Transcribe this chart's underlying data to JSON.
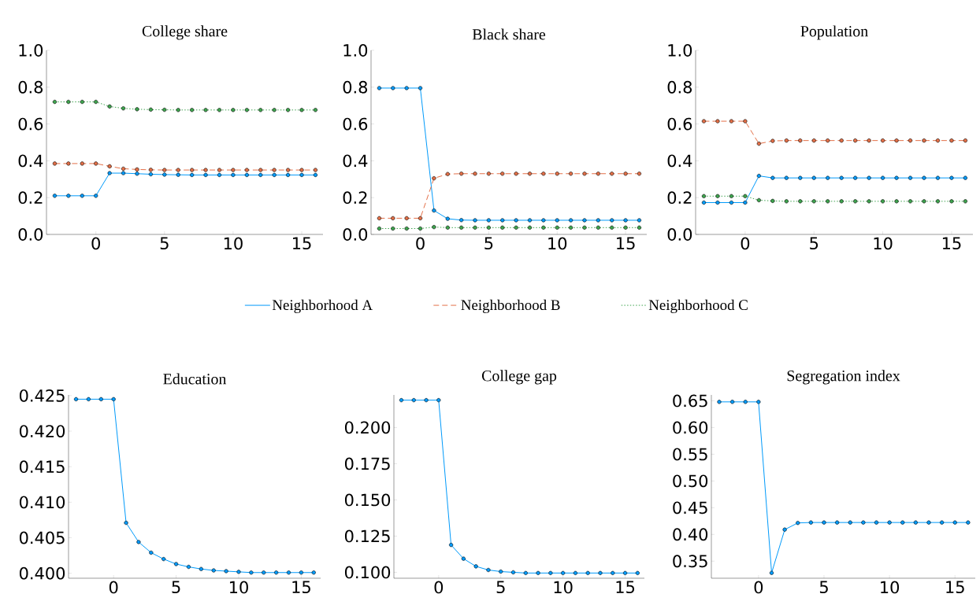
{
  "chart_data": [
    {
      "type": "line",
      "title": "College share",
      "x": [
        -3,
        -2,
        -1,
        0,
        1,
        2,
        3,
        4,
        5,
        6,
        7,
        8,
        9,
        10,
        11,
        12,
        13,
        14,
        15,
        16
      ],
      "xlim": [
        -3.6,
        16.55
      ],
      "xticks": [
        0,
        5,
        10,
        15
      ],
      "ylim": [
        0,
        1
      ],
      "yticks": [
        {
          "value": 0,
          "label": "0.0"
        },
        {
          "value": 0.2,
          "label": "0.2"
        },
        {
          "value": 0.4,
          "label": "0.4"
        },
        {
          "value": 0.6,
          "label": "0.6"
        },
        {
          "value": 0.8,
          "label": "0.8"
        },
        {
          "value": 1,
          "label": "1.0"
        }
      ],
      "marker": "circle",
      "legend": "bottom",
      "series": [
        {
          "name": "Neighborhood A",
          "color": "#009afa",
          "line_style": "solid",
          "values": [
            0.21,
            0.21,
            0.21,
            0.21,
            0.333,
            0.333,
            0.33,
            0.327,
            0.325,
            0.324,
            0.323,
            0.323,
            0.323,
            0.323,
            0.323,
            0.323,
            0.323,
            0.323,
            0.323,
            0.323
          ]
        },
        {
          "name": "Neighborhood B",
          "color": "#e36f47",
          "line_style": "dashed",
          "values": [
            0.385,
            0.385,
            0.385,
            0.385,
            0.37,
            0.357,
            0.353,
            0.351,
            0.35,
            0.35,
            0.35,
            0.35,
            0.35,
            0.35,
            0.35,
            0.35,
            0.35,
            0.35,
            0.35,
            0.35
          ]
        },
        {
          "name": "Neighborhood C",
          "color": "#3ea44e",
          "line_style": "dotted",
          "values": [
            0.72,
            0.72,
            0.72,
            0.72,
            0.695,
            0.685,
            0.68,
            0.678,
            0.677,
            0.676,
            0.676,
            0.676,
            0.676,
            0.676,
            0.676,
            0.676,
            0.676,
            0.676,
            0.676,
            0.676
          ]
        }
      ]
    },
    {
      "type": "line",
      "title": "Black share",
      "x": [
        -3,
        -2,
        -1,
        0,
        1,
        2,
        3,
        4,
        5,
        6,
        7,
        8,
        9,
        10,
        11,
        12,
        13,
        14,
        15,
        16
      ],
      "xlim": [
        -3.6,
        16.55
      ],
      "xticks": [
        0,
        5,
        10,
        15
      ],
      "ylim": [
        0,
        1
      ],
      "yticks": [
        {
          "value": 0,
          "label": "0.0"
        },
        {
          "value": 0.2,
          "label": "0.2"
        },
        {
          "value": 0.4,
          "label": "0.4"
        },
        {
          "value": 0.6,
          "label": "0.6"
        },
        {
          "value": 0.8,
          "label": "0.8"
        },
        {
          "value": 1,
          "label": "1.0"
        }
      ],
      "marker": "circle",
      "series": [
        {
          "color": "#009afa",
          "line_style": "solid",
          "values": [
            0.795,
            0.795,
            0.795,
            0.795,
            0.13,
            0.085,
            0.078,
            0.077,
            0.077,
            0.077,
            0.077,
            0.077,
            0.077,
            0.077,
            0.077,
            0.077,
            0.077,
            0.077,
            0.077,
            0.077
          ]
        },
        {
          "color": "#e36f47",
          "line_style": "dashed",
          "values": [
            0.088,
            0.088,
            0.088,
            0.088,
            0.305,
            0.328,
            0.33,
            0.33,
            0.33,
            0.33,
            0.33,
            0.33,
            0.33,
            0.33,
            0.33,
            0.33,
            0.33,
            0.33,
            0.33,
            0.33
          ]
        },
        {
          "color": "#3ea44e",
          "line_style": "dotted",
          "values": [
            0.032,
            0.032,
            0.032,
            0.032,
            0.04,
            0.037,
            0.037,
            0.037,
            0.037,
            0.037,
            0.037,
            0.037,
            0.037,
            0.037,
            0.037,
            0.037,
            0.037,
            0.037,
            0.037,
            0.037
          ]
        }
      ]
    },
    {
      "type": "line",
      "title": "Population",
      "x": [
        -3,
        -2,
        -1,
        0,
        1,
        2,
        3,
        4,
        5,
        6,
        7,
        8,
        9,
        10,
        11,
        12,
        13,
        14,
        15,
        16
      ],
      "xlim": [
        -3.6,
        16.55
      ],
      "xticks": [
        0,
        5,
        10,
        15
      ],
      "ylim": [
        0,
        1
      ],
      "yticks": [
        {
          "value": 0,
          "label": "0.0"
        },
        {
          "value": 0.2,
          "label": "0.2"
        },
        {
          "value": 0.4,
          "label": "0.4"
        },
        {
          "value": 0.6,
          "label": "0.6"
        },
        {
          "value": 0.8,
          "label": "0.8"
        },
        {
          "value": 1,
          "label": "1.0"
        }
      ],
      "marker": "circle",
      "series": [
        {
          "color": "#009afa",
          "line_style": "solid",
          "values": [
            0.173,
            0.173,
            0.173,
            0.173,
            0.318,
            0.307,
            0.307,
            0.307,
            0.307,
            0.307,
            0.307,
            0.307,
            0.307,
            0.307,
            0.307,
            0.307,
            0.307,
            0.307,
            0.307,
            0.307
          ]
        },
        {
          "color": "#e36f47",
          "line_style": "dashed",
          "values": [
            0.615,
            0.615,
            0.615,
            0.615,
            0.493,
            0.508,
            0.51,
            0.51,
            0.51,
            0.51,
            0.51,
            0.51,
            0.51,
            0.51,
            0.51,
            0.51,
            0.51,
            0.51,
            0.51,
            0.51
          ]
        },
        {
          "color": "#3ea44e",
          "line_style": "dotted",
          "values": [
            0.208,
            0.208,
            0.208,
            0.208,
            0.186,
            0.182,
            0.18,
            0.18,
            0.18,
            0.18,
            0.18,
            0.18,
            0.18,
            0.18,
            0.18,
            0.18,
            0.18,
            0.18,
            0.18,
            0.18
          ]
        }
      ]
    },
    {
      "type": "line",
      "title": "Education",
      "x": [
        -3,
        -2,
        -1,
        0,
        1,
        2,
        3,
        4,
        5,
        6,
        7,
        8,
        9,
        10,
        11,
        12,
        13,
        14,
        15,
        16
      ],
      "xlim": [
        -3.6,
        16.55
      ],
      "xticks": [
        0,
        5,
        10,
        15
      ],
      "ylim": [
        0.3993,
        0.4251
      ],
      "yticks": [
        {
          "value": 0.4,
          "label": "0.400"
        },
        {
          "value": 0.405,
          "label": "0.405"
        },
        {
          "value": 0.41,
          "label": "0.410"
        },
        {
          "value": 0.415,
          "label": "0.415"
        },
        {
          "value": 0.42,
          "label": "0.420"
        },
        {
          "value": 0.425,
          "label": "0.425"
        }
      ],
      "marker": "circle",
      "series": [
        {
          "color": "#009afa",
          "line_style": "solid",
          "values": [
            0.4245,
            0.4245,
            0.4245,
            0.4245,
            0.4071,
            0.4044,
            0.4029,
            0.402,
            0.4013,
            0.4009,
            0.4006,
            0.4004,
            0.4003,
            0.4002,
            0.4001,
            0.4001,
            0.4001,
            0.4001,
            0.4001,
            0.4001
          ]
        }
      ]
    },
    {
      "type": "line",
      "title": "College gap",
      "x": [
        -3,
        -2,
        -1,
        0,
        1,
        2,
        3,
        4,
        5,
        6,
        7,
        8,
        9,
        10,
        11,
        12,
        13,
        14,
        15,
        16
      ],
      "xlim": [
        -3.6,
        16.55
      ],
      "xticks": [
        0,
        5,
        10,
        15
      ],
      "ylim": [
        0.0959,
        0.2225
      ],
      "yticks": [
        {
          "value": 0.1,
          "label": "0.100"
        },
        {
          "value": 0.125,
          "label": "0.125"
        },
        {
          "value": 0.15,
          "label": "0.150"
        },
        {
          "value": 0.175,
          "label": "0.175"
        },
        {
          "value": 0.2,
          "label": "0.200"
        }
      ],
      "marker": "circle",
      "series": [
        {
          "color": "#009afa",
          "line_style": "solid",
          "values": [
            0.2189,
            0.2189,
            0.2189,
            0.2189,
            0.1189,
            0.1094,
            0.1041,
            0.1016,
            0.1005,
            0.1,
            0.0995,
            0.0995,
            0.0995,
            0.0995,
            0.0995,
            0.0995,
            0.0995,
            0.0995,
            0.0995,
            0.0995
          ]
        }
      ]
    },
    {
      "type": "line",
      "title": "Segregation index",
      "x": [
        -3,
        -2,
        -1,
        0,
        1,
        2,
        3,
        4,
        5,
        6,
        7,
        8,
        9,
        10,
        11,
        12,
        13,
        14,
        15,
        16
      ],
      "xlim": [
        -3.6,
        16.55
      ],
      "xticks": [
        0,
        5,
        10,
        15
      ],
      "ylim": [
        0.318,
        0.661
      ],
      "yticks": [
        {
          "value": 0.35,
          "label": "0.35"
        },
        {
          "value": 0.4,
          "label": "0.40"
        },
        {
          "value": 0.45,
          "label": "0.45"
        },
        {
          "value": 0.5,
          "label": "0.50"
        },
        {
          "value": 0.55,
          "label": "0.55"
        },
        {
          "value": 0.6,
          "label": "0.60"
        },
        {
          "value": 0.65,
          "label": "0.65"
        }
      ],
      "marker": "circle",
      "series": [
        {
          "color": "#009afa",
          "line_style": "solid",
          "values": [
            0.648,
            0.648,
            0.648,
            0.648,
            0.328,
            0.409,
            0.4215,
            0.4223,
            0.4223,
            0.4223,
            0.4223,
            0.4223,
            0.4223,
            0.4223,
            0.4223,
            0.4223,
            0.4223,
            0.4223,
            0.4223,
            0.4223
          ]
        }
      ]
    }
  ]
}
